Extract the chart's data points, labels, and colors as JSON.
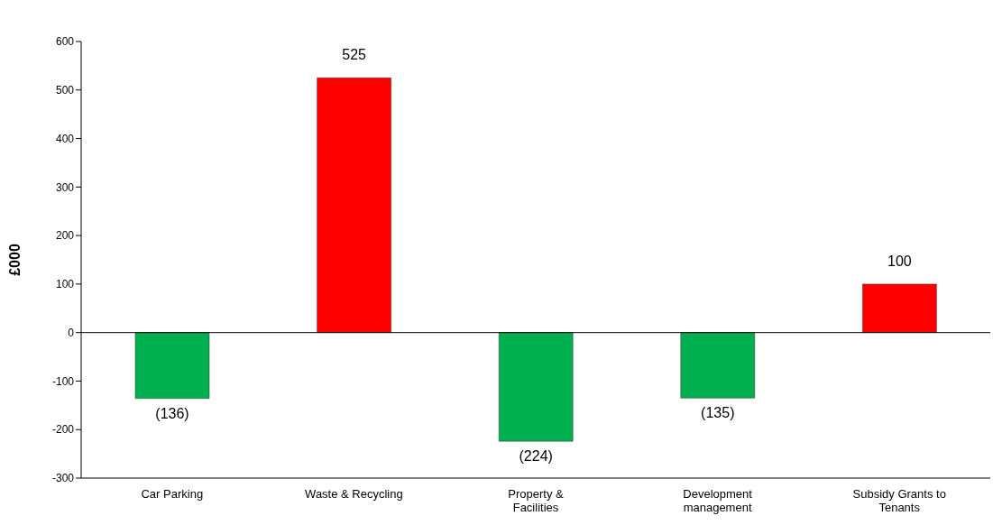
{
  "chart_data": {
    "type": "bar",
    "ylabel": "£000",
    "categories": [
      "Car Parking",
      "Waste & Recycling",
      "Property & Facilities",
      "Development management",
      "Subsidy Grants to Tenants"
    ],
    "values": [
      -136,
      525,
      -224,
      -135,
      100
    ],
    "colors": [
      "#00b050",
      "#ff0000",
      "#00b050",
      "#00b050",
      "#ff0000"
    ],
    "value_labels": [
      "(136)",
      "525",
      "(224)",
      "(135)",
      "100"
    ],
    "ylim": [
      -300,
      600
    ],
    "yticks": [
      -300,
      -200,
      -100,
      0,
      100,
      200,
      300,
      400,
      500,
      600
    ]
  }
}
